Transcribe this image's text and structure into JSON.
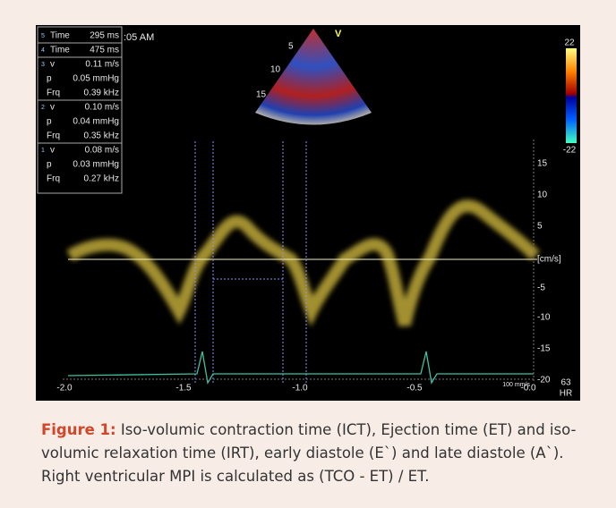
{
  "image": {
    "clock": ":05 AM",
    "measurements": [
      {
        "number": "5",
        "rows": [
          [
            "Time",
            "295 ms"
          ]
        ]
      },
      {
        "number": "4",
        "rows": [
          [
            "Time",
            "475 ms"
          ]
        ]
      },
      {
        "number": "3",
        "rows": [
          [
            "v",
            "0.11 m/s"
          ],
          [
            "p",
            "0.05 mmHg"
          ],
          [
            "Frq",
            "0.39 kHz"
          ]
        ]
      },
      {
        "number": "2",
        "rows": [
          [
            "v",
            "0.10 m/s"
          ],
          [
            "p",
            "0.04 mmHg"
          ],
          [
            "Frq",
            "0.35 kHz"
          ]
        ]
      },
      {
        "number": "1",
        "rows": [
          [
            "v",
            "0.08 m/s"
          ],
          [
            "p",
            "0.03 mmHg"
          ],
          [
            "Frq",
            "0.27 kHz"
          ]
        ]
      }
    ],
    "sector_depths": [
      "5",
      "10",
      "15"
    ],
    "sector_label": "V",
    "color_scale": {
      "max": "22",
      "min": "-22"
    },
    "velocity_ticks": [
      "15",
      "10",
      "5",
      "[cm/s]",
      "-5",
      "-10",
      "-15",
      "-20"
    ],
    "time_ticks": [
      "-2.0",
      "-1.5",
      "-1.0",
      "-0.5",
      "-0.0"
    ],
    "sweep_speed": "100 mm/s",
    "heart_rate": {
      "value": "63",
      "label": "HR"
    }
  },
  "caption": {
    "label": "Figure 1:",
    "text": " Iso-volumic contraction time (ICT), Ejection time (ET) and iso-volumic relaxation time (IRT), early diastole (E`) and late diastole (A`). Right ventricular MPI is calculated as (TCO - ET) / ET."
  }
}
